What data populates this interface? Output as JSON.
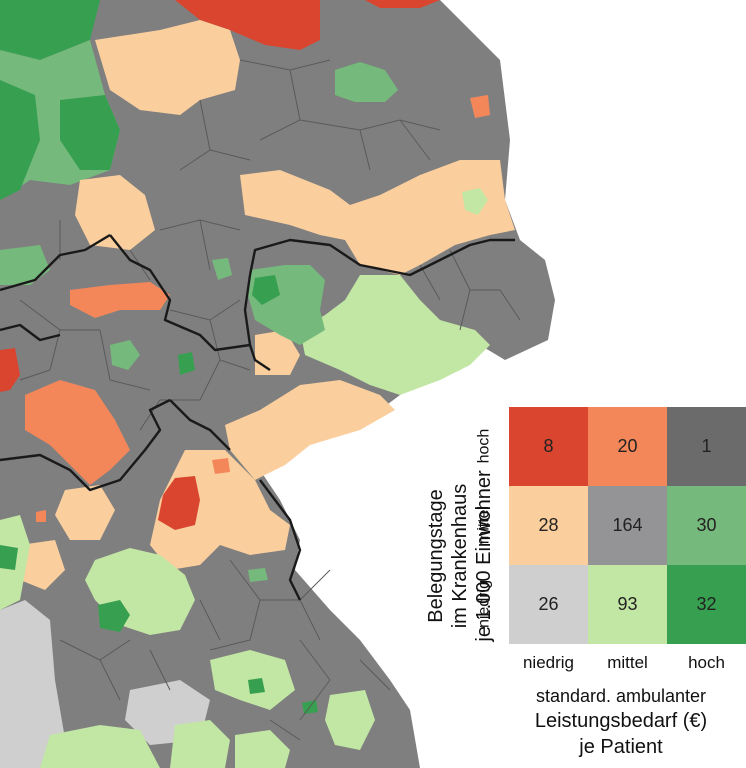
{
  "colors": {
    "background": "#ffffff",
    "district_gray": "#7f7f80",
    "district_border": "#5e5e5e",
    "state_border": "#1a1a1a"
  },
  "legend": {
    "y_title": [
      "Belegungstage",
      "im Krankenhaus",
      "je 1.000 Einwohner"
    ],
    "x_title": [
      "standard. ambulanter",
      "Leistungsbedarf (€)",
      "je Patient"
    ],
    "row_labels": [
      "hoch",
      "mittel",
      "niedrig"
    ],
    "col_labels": [
      "niedrig",
      "mittel",
      "hoch"
    ],
    "cells": [
      [
        {
          "value": "8",
          "color": "#d9452f"
        },
        {
          "value": "20",
          "color": "#f4875a"
        },
        {
          "value": "1",
          "color": "#6b6b6c"
        }
      ],
      [
        {
          "value": "28",
          "color": "#fbcf9d"
        },
        {
          "value": "164",
          "color": "#949496"
        },
        {
          "value": "30",
          "color": "#76b97c"
        }
      ],
      [
        {
          "value": "26",
          "color": "#cfcfd0"
        },
        {
          "value": "93",
          "color": "#c2e6a3"
        },
        {
          "value": "32",
          "color": "#37a050"
        }
      ]
    ]
  }
}
